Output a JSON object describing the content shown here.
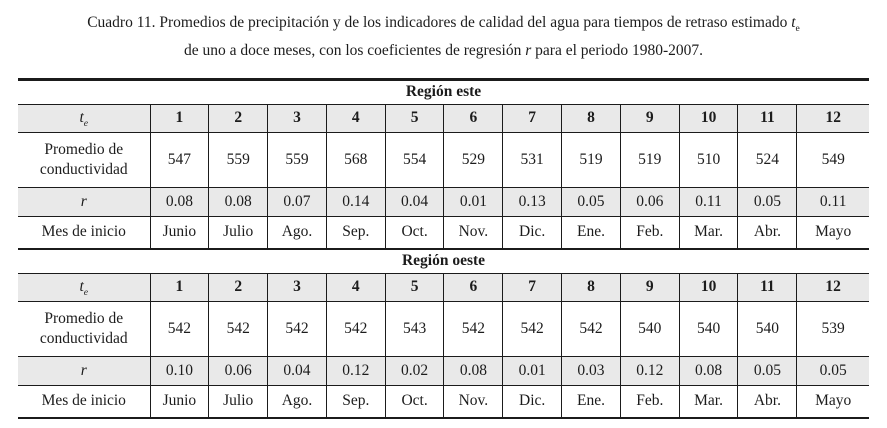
{
  "caption": {
    "line1_text": "Cuadro 11. Promedios de precipitación y de los indicadores de calidad del agua para tiempos de retraso estimado ",
    "te_main": "t",
    "te_sub": "e",
    "line2_pre": "de uno a doce meses, con los coeficientes de regresión ",
    "r_symbol": "r",
    "line2_post": " para el periodo 1980-2007."
  },
  "tables": [
    {
      "id": "region-este",
      "region_label": "Región este",
      "header": {
        "te_main": "t",
        "te_sub": "e",
        "cols": [
          "1",
          "2",
          "3",
          "4",
          "5",
          "6",
          "7",
          "8",
          "9",
          "10",
          "11",
          "12"
        ]
      },
      "rows": [
        {
          "key": "conductivity",
          "label": "Promedio de conductividad",
          "values": [
            "547",
            "559",
            "559",
            "568",
            "554",
            "529",
            "531",
            "519",
            "519",
            "510",
            "524",
            "549"
          ]
        },
        {
          "key": "r",
          "label": "r",
          "values": [
            "0.08",
            "0.08",
            "0.07",
            "0.14",
            "0.04",
            "0.01",
            "0.13",
            "0.05",
            "0.06",
            "0.11",
            "0.05",
            "0.11"
          ]
        },
        {
          "key": "month",
          "label": "Mes de inicio",
          "values": [
            "Junio",
            "Julio",
            "Ago.",
            "Sep.",
            "Oct.",
            "Nov.",
            "Dic.",
            "Ene.",
            "Feb.",
            "Mar.",
            "Abr.",
            "Mayo"
          ]
        }
      ]
    },
    {
      "id": "region-oeste",
      "region_label": "Región oeste",
      "header": {
        "te_main": "t",
        "te_sub": "e",
        "cols": [
          "1",
          "2",
          "3",
          "4",
          "5",
          "6",
          "7",
          "8",
          "9",
          "10",
          "11",
          "12"
        ]
      },
      "rows": [
        {
          "key": "conductivity",
          "label": "Promedio de conductividad",
          "values": [
            "542",
            "542",
            "542",
            "542",
            "543",
            "542",
            "542",
            "542",
            "540",
            "540",
            "540",
            "539"
          ]
        },
        {
          "key": "r",
          "label": "r",
          "values": [
            "0.10",
            "0.06",
            "0.04",
            "0.12",
            "0.02",
            "0.08",
            "0.01",
            "0.03",
            "0.12",
            "0.08",
            "0.05",
            "0.05"
          ]
        },
        {
          "key": "month",
          "label": "Mes de inicio",
          "values": [
            "Junio",
            "Julio",
            "Ago.",
            "Sep.",
            "Oct.",
            "Nov.",
            "Dic.",
            "Ene.",
            "Feb.",
            "Mar.",
            "Abr.",
            "Mayo"
          ]
        }
      ]
    }
  ]
}
